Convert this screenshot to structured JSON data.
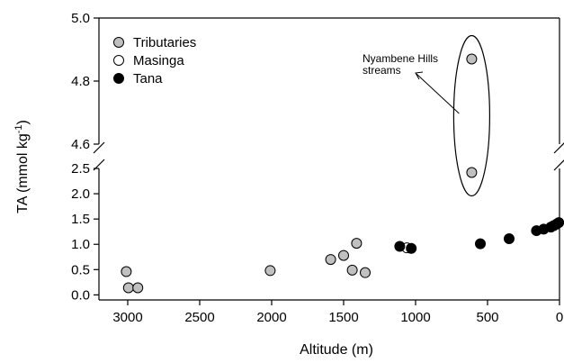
{
  "chart_data": {
    "type": "scatter",
    "title": "",
    "xlabel": "Altitude (m)",
    "ylabel": "TA (mmol kg",
    "ylabel_sup": "-1",
    "ylabel_close": ")",
    "x_reversed": true,
    "xlim": [
      3200,
      0
    ],
    "x_ticks": [
      3000,
      2500,
      2000,
      1500,
      1000,
      500,
      0
    ],
    "y_axis_break": true,
    "y_lower_range": [
      -0.1,
      2.5
    ],
    "y_upper_range": [
      4.6,
      5.0
    ],
    "y_ticks_lower": [
      "0.0",
      "0.5",
      "1.0",
      "1.5",
      "2.0",
      "2.5"
    ],
    "y_ticks_upper": [
      "4.6",
      "4.8",
      "5.0"
    ],
    "legend_position": "top-left",
    "series": [
      {
        "name": "Tributaries",
        "marker_color": "#c0c0c0",
        "points": [
          {
            "x": 3010,
            "y": 0.46
          },
          {
            "x": 2995,
            "y": 0.14
          },
          {
            "x": 2930,
            "y": 0.14
          },
          {
            "x": 2010,
            "y": 0.48
          },
          {
            "x": 1590,
            "y": 0.7
          },
          {
            "x": 1500,
            "y": 0.78
          },
          {
            "x": 1440,
            "y": 0.49
          },
          {
            "x": 1410,
            "y": 1.02
          },
          {
            "x": 1350,
            "y": 0.44
          },
          {
            "x": 610,
            "y": 2.42
          },
          {
            "x": 610,
            "y": 4.87
          }
        ]
      },
      {
        "name": "Masinga",
        "marker_color": "#ffffff",
        "points": [
          {
            "x": 1060,
            "y": 0.93
          }
        ]
      },
      {
        "name": "Tana",
        "marker_color": "#000000",
        "points": [
          {
            "x": 1110,
            "y": 0.96
          },
          {
            "x": 1030,
            "y": 0.92
          },
          {
            "x": 550,
            "y": 1.01
          },
          {
            "x": 350,
            "y": 1.11
          },
          {
            "x": 160,
            "y": 1.27
          },
          {
            "x": 110,
            "y": 1.3
          },
          {
            "x": 60,
            "y": 1.34
          },
          {
            "x": 40,
            "y": 1.37
          },
          {
            "x": 20,
            "y": 1.4
          },
          {
            "x": 5,
            "y": 1.43
          }
        ]
      }
    ],
    "annotation": {
      "lines": [
        "Nyambene Hills",
        "streams"
      ],
      "target_x": 610,
      "target_y_range": [
        2.42,
        4.87
      ]
    }
  }
}
